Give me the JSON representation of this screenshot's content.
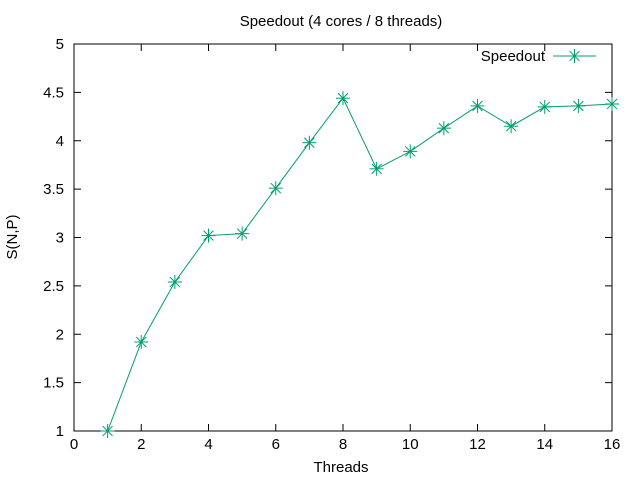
{
  "chart_data": {
    "type": "line",
    "title": "Speedout (4 cores / 8 threads)",
    "xlabel": "Threads",
    "ylabel": "S(N,P)",
    "xlim": [
      0,
      16
    ],
    "ylim": [
      1,
      5
    ],
    "xticks": [
      0,
      2,
      4,
      6,
      8,
      10,
      12,
      14,
      16
    ],
    "yticks": [
      1,
      1.5,
      2,
      2.5,
      3,
      3.5,
      4,
      4.5,
      5
    ],
    "grid": false,
    "legend": "top-right",
    "series": [
      {
        "name": "Speedout",
        "color": "#009e73",
        "marker": "asterisk",
        "x": [
          1,
          2,
          3,
          4,
          5,
          6,
          7,
          8,
          9,
          10,
          11,
          12,
          13,
          14,
          15,
          16
        ],
        "y": [
          1.0,
          1.92,
          2.54,
          3.02,
          3.04,
          3.51,
          3.98,
          4.44,
          3.71,
          3.89,
          4.13,
          4.36,
          4.15,
          4.35,
          4.36,
          4.38
        ]
      }
    ]
  }
}
